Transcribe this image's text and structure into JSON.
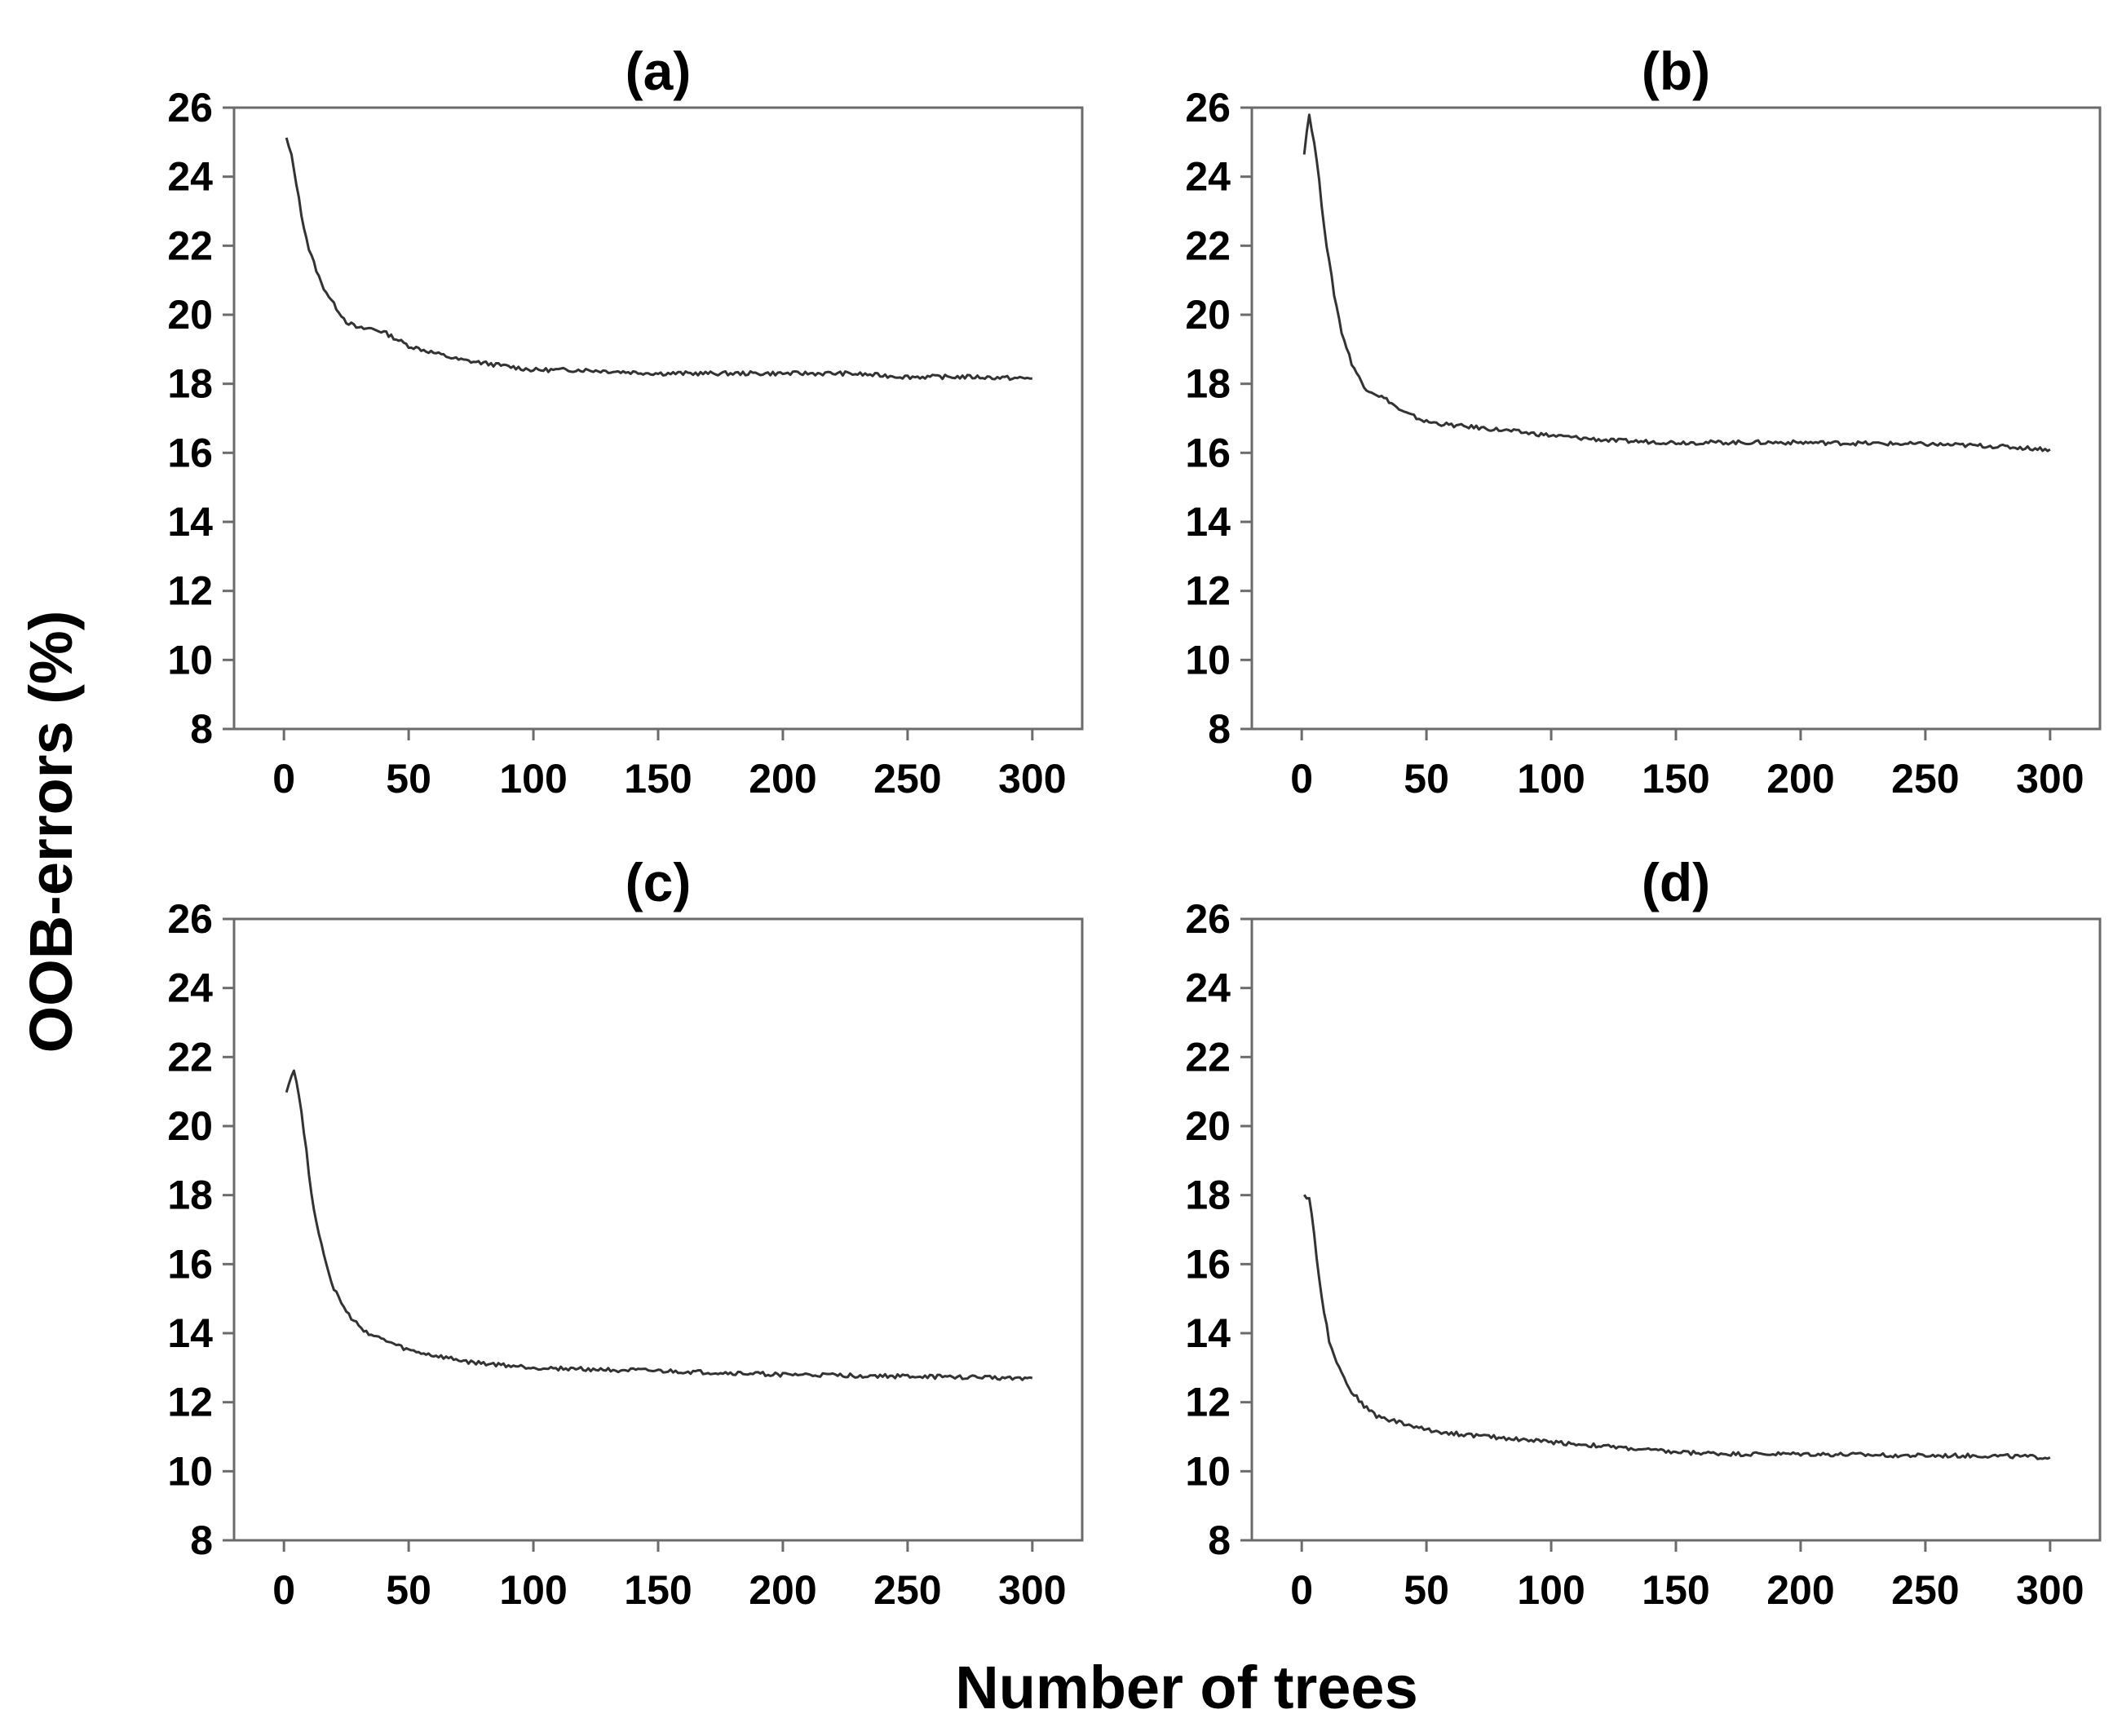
{
  "figure": {
    "ylabel": "OOB-errors (%)",
    "xlabel": "Number of trees"
  },
  "chart_data": [
    {
      "type": "line",
      "title": "(a)",
      "xlim": [
        -20,
        320
      ],
      "ylim": [
        8,
        26
      ],
      "xticks": [
        0,
        50,
        100,
        150,
        200,
        250,
        300
      ],
      "yticks": [
        8,
        10,
        12,
        14,
        16,
        18,
        20,
        22,
        24,
        26
      ],
      "series": [
        {
          "name": "OOB error",
          "x": [
            1,
            3,
            5,
            7,
            10,
            15,
            20,
            25,
            30,
            35,
            40,
            45,
            50,
            60,
            70,
            80,
            90,
            100,
            120,
            150,
            175,
            200,
            225,
            250,
            275,
            300
          ],
          "y": [
            25.1,
            24.6,
            23.8,
            22.9,
            21.9,
            20.9,
            20.3,
            19.8,
            19.6,
            19.6,
            19.5,
            19.3,
            19.1,
            18.9,
            18.7,
            18.6,
            18.5,
            18.4,
            18.4,
            18.3,
            18.3,
            18.3,
            18.3,
            18.2,
            18.2,
            18.15
          ]
        }
      ]
    },
    {
      "type": "line",
      "title": "(b)",
      "xlim": [
        -20,
        320
      ],
      "ylim": [
        8,
        26
      ],
      "xticks": [
        0,
        50,
        100,
        150,
        200,
        250,
        300
      ],
      "yticks": [
        8,
        10,
        12,
        14,
        16,
        18,
        20,
        22,
        24,
        26
      ],
      "series": [
        {
          "name": "OOB error",
          "x": [
            1,
            2,
            3,
            4,
            6,
            8,
            10,
            13,
            16,
            20,
            25,
            30,
            35,
            40,
            50,
            60,
            75,
            100,
            125,
            150,
            200,
            250,
            275,
            300
          ],
          "y": [
            24.7,
            25.3,
            25.8,
            25.4,
            24.5,
            23.2,
            22.0,
            20.6,
            19.5,
            18.6,
            17.9,
            17.7,
            17.5,
            17.2,
            16.9,
            16.8,
            16.7,
            16.5,
            16.35,
            16.3,
            16.3,
            16.25,
            16.2,
            16.1
          ]
        }
      ]
    },
    {
      "type": "line",
      "title": "(c)",
      "xlim": [
        -20,
        320
      ],
      "ylim": [
        8,
        26
      ],
      "xticks": [
        0,
        50,
        100,
        150,
        200,
        250,
        300
      ],
      "yticks": [
        8,
        10,
        12,
        14,
        16,
        18,
        20,
        22,
        24,
        26
      ],
      "series": [
        {
          "name": "OOB error",
          "x": [
            1,
            3,
            4,
            5,
            7,
            9,
            11,
            14,
            17,
            20,
            25,
            30,
            35,
            40,
            50,
            60,
            75,
            100,
            125,
            150,
            200,
            250,
            300
          ],
          "y": [
            21.0,
            21.5,
            21.6,
            21.3,
            20.4,
            19.3,
            18.0,
            16.9,
            16.0,
            15.3,
            14.6,
            14.2,
            13.95,
            13.8,
            13.5,
            13.35,
            13.15,
            13.0,
            12.95,
            12.9,
            12.8,
            12.75,
            12.7
          ]
        }
      ]
    },
    {
      "type": "line",
      "title": "(d)",
      "xlim": [
        -20,
        320
      ],
      "ylim": [
        8,
        26
      ],
      "xticks": [
        0,
        50,
        100,
        150,
        200,
        250,
        300
      ],
      "yticks": [
        8,
        10,
        12,
        14,
        16,
        18,
        20,
        22,
        24,
        26
      ],
      "series": [
        {
          "name": "OOB error",
          "x": [
            1,
            3,
            4,
            5,
            7,
            9,
            11,
            14,
            17,
            20,
            25,
            30,
            40,
            50,
            60,
            75,
            100,
            125,
            150,
            175,
            200,
            250,
            275,
            300
          ],
          "y": [
            18.0,
            17.9,
            17.5,
            16.8,
            15.6,
            14.6,
            13.8,
            13.2,
            12.7,
            12.3,
            11.9,
            11.6,
            11.4,
            11.2,
            11.1,
            11.0,
            10.85,
            10.7,
            10.55,
            10.5,
            10.5,
            10.45,
            10.45,
            10.4
          ]
        }
      ]
    }
  ]
}
